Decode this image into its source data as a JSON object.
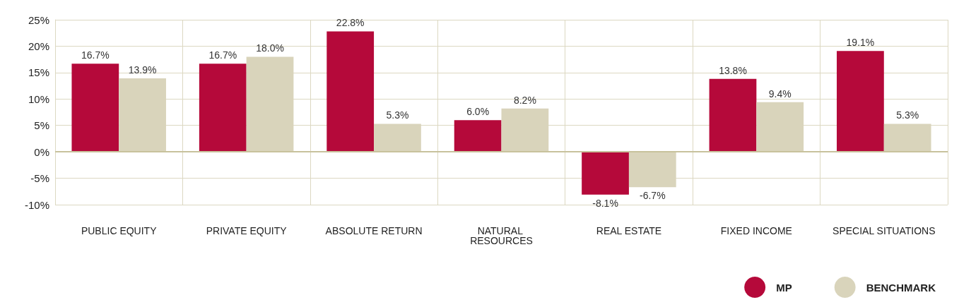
{
  "chart_data": {
    "type": "bar",
    "categories": [
      "PUBLIC EQUITY",
      "PRIVATE EQUITY",
      "ABSOLUTE RETURN",
      "NATURAL RESOURCES",
      "REAL ESTATE",
      "FIXED INCOME",
      "SPECIAL SITUATIONS"
    ],
    "series": [
      {
        "name": "MP",
        "color": "#b5093a",
        "values": [
          16.7,
          16.7,
          22.8,
          6.0,
          -8.1,
          13.8,
          19.1
        ],
        "value_labels": [
          "16.7%",
          "16.7%",
          "22.8%",
          "6.0%",
          "-8.1%",
          "13.8%",
          "19.1%"
        ]
      },
      {
        "name": "BENCHMARK",
        "color": "#d9d4bb",
        "values": [
          13.9,
          18.0,
          5.3,
          8.2,
          -6.7,
          9.4,
          5.3
        ],
        "value_labels": [
          "13.9%",
          "18.0%",
          "5.3%",
          "8.2%",
          "-6.7%",
          "9.4%",
          "5.3%"
        ]
      }
    ],
    "ylim": [
      -10,
      25
    ],
    "yticks": [
      {
        "value": -10,
        "label": "-10%"
      },
      {
        "value": -5,
        "label": "-5%"
      },
      {
        "value": 0,
        "label": "0%"
      },
      {
        "value": 5,
        "label": "5%"
      },
      {
        "value": 10,
        "label": "10%"
      },
      {
        "value": 15,
        "label": "15%"
      },
      {
        "value": 20,
        "label": "20%"
      },
      {
        "value": 25,
        "label": "25%"
      }
    ],
    "grid": true,
    "ref_lines": [
      {
        "axis": "y",
        "value": 0,
        "color": "#c8c29c"
      }
    ],
    "legend": "bottom right"
  }
}
